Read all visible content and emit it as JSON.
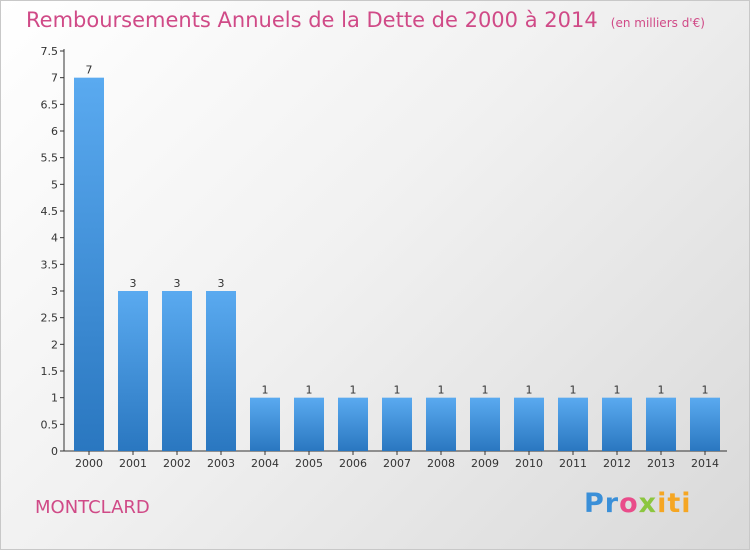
{
  "chart_data": {
    "type": "bar",
    "title": "Remboursements Annuels de la Dette de 2000 à 2014",
    "unit": "(en milliers d'€)",
    "categories": [
      "2000",
      "2001",
      "2002",
      "2003",
      "2004",
      "2005",
      "2006",
      "2007",
      "2008",
      "2009",
      "2010",
      "2011",
      "2012",
      "2013",
      "2014"
    ],
    "values": [
      7,
      3,
      3,
      3,
      1,
      1,
      1,
      1,
      1,
      1,
      1,
      1,
      1,
      1,
      1
    ],
    "value_labels": [
      "7",
      "3",
      "3",
      "3",
      "1",
      "1",
      "1",
      "1",
      "1",
      "1",
      "1",
      "1",
      "1",
      "1",
      "1"
    ],
    "y_ticks": [
      "0",
      "0.5",
      "1",
      "1.5",
      "2",
      "2.5",
      "3",
      "3.5",
      "4",
      "4.5",
      "5",
      "5.5",
      "6",
      "6.5",
      "7",
      "7.5"
    ],
    "ylim": [
      0,
      7.5
    ],
    "xlabel": "",
    "ylabel": "",
    "grid": false,
    "bar_color": "#4a9de0",
    "title_color": "#d04a87"
  },
  "footer": {
    "commune": "MONTCLARD",
    "logo": "Proxiti",
    "logo_parts": [
      "Pr",
      "o",
      "x",
      "iti"
    ]
  }
}
